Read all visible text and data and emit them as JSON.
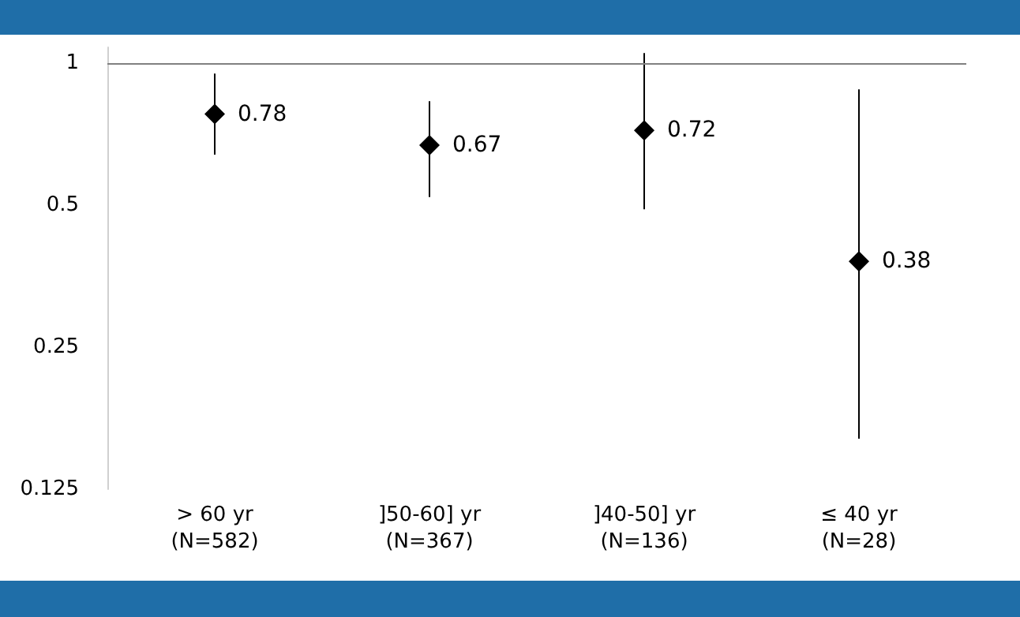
{
  "chart_data": {
    "type": "scatter",
    "categories": [
      "> 60 yr\n(N=582)",
      "]50-60] yr\n(N=367)",
      "]40-50] yr\n(N=136)",
      "≤ 40 yr\n(N=28)"
    ],
    "series": [
      {
        "color": "#000000",
        "values": [
          0.78,
          0.67,
          0.72,
          0.38
        ],
        "errors": [
          [
            0.64,
            0.95
          ],
          [
            0.52,
            0.83
          ],
          [
            0.49,
            1.05
          ],
          [
            0.16,
            0.88
          ]
        ]
      }
    ],
    "log": "y",
    "ylim": [
      0.125,
      1.08
    ],
    "yticks": [
      0.125,
      0.25,
      0.5,
      1
    ],
    "ref_lines": [
      {
        "axis": "y",
        "value": 1,
        "color": "#808080"
      }
    ],
    "marker": "diamond",
    "data_labels": true,
    "grid": false
  }
}
